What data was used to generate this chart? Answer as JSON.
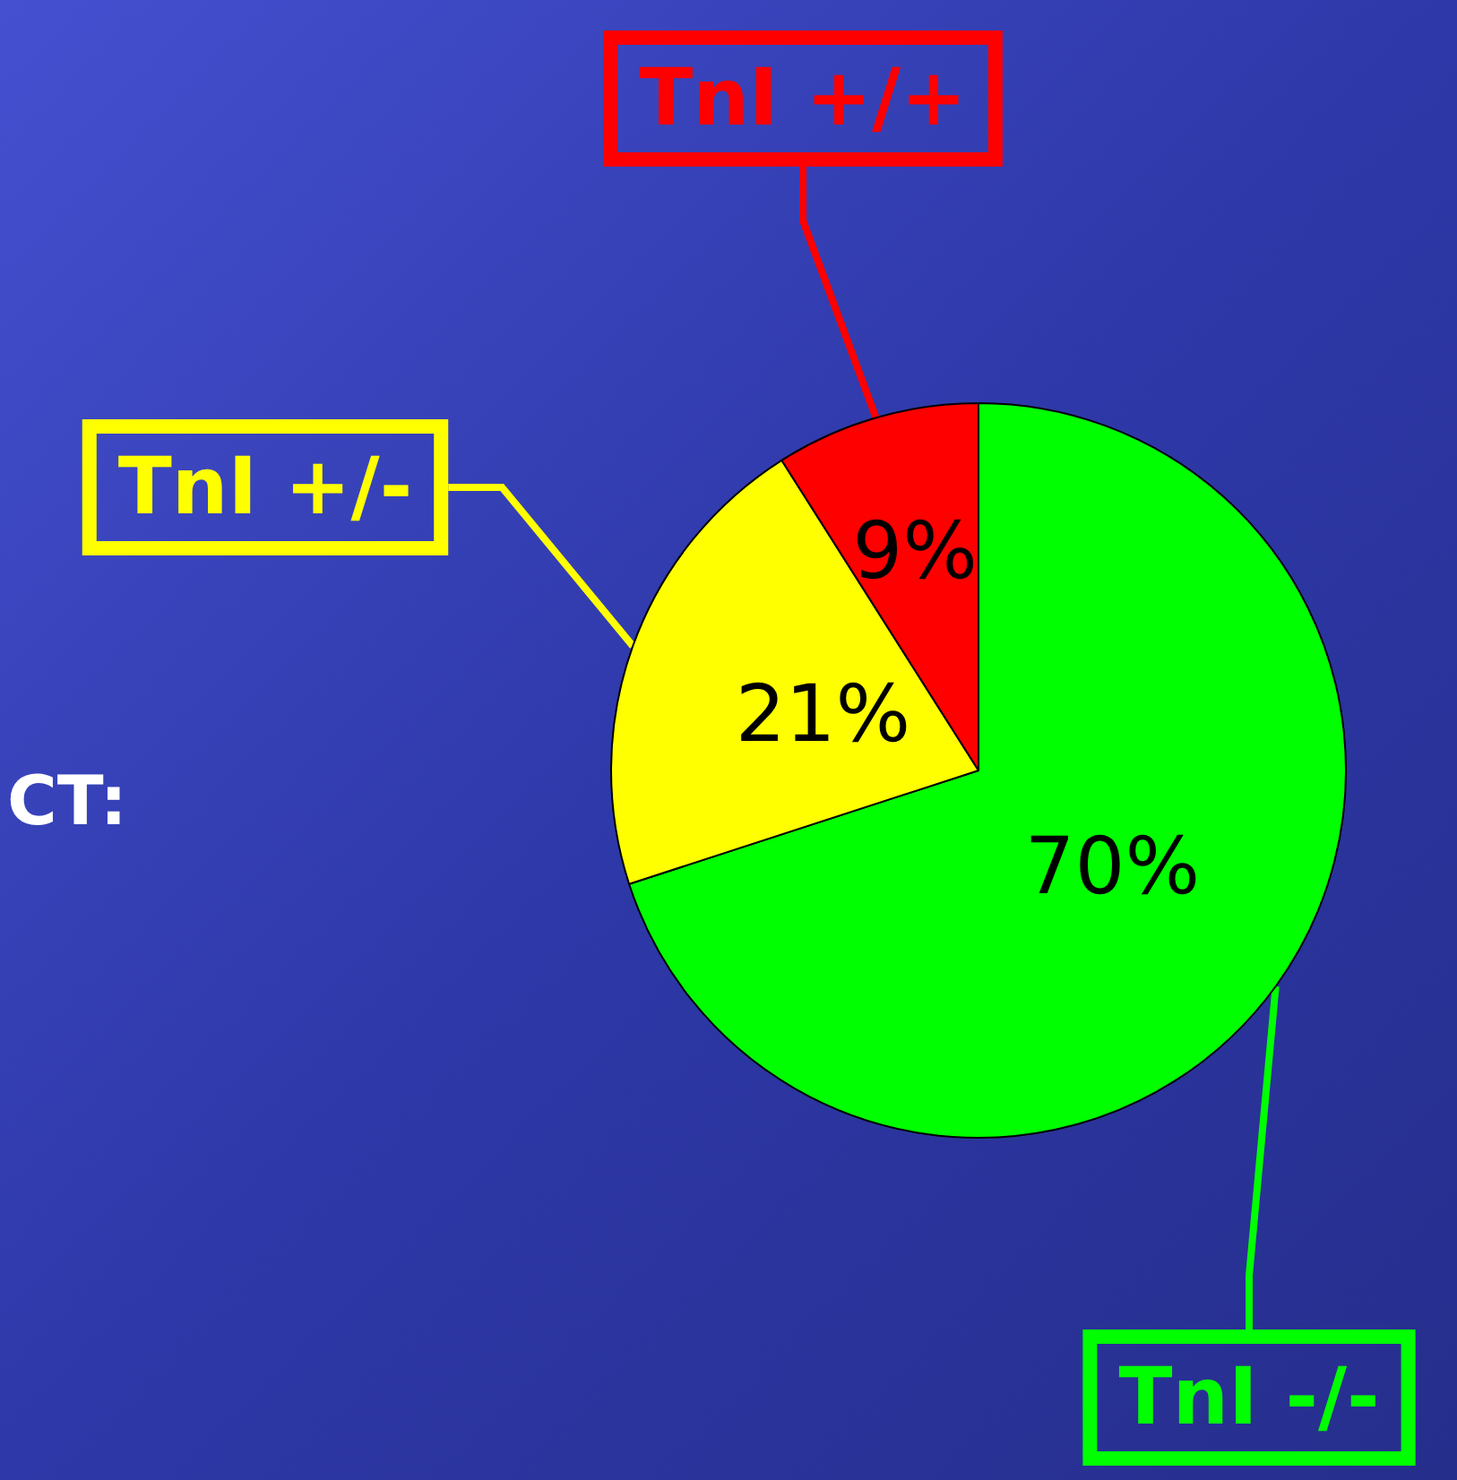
{
  "chart_data": {
    "type": "pie",
    "categories": [
      "TnI -/-",
      "TnI +/-",
      "TnI +/+"
    ],
    "values": [
      70,
      21,
      9
    ],
    "value_labels": [
      "70%",
      "21%",
      "9%"
    ],
    "colors": [
      "#00ff00",
      "#ffff00",
      "#ff0000"
    ],
    "annotations": [
      "CT:"
    ],
    "legend": false
  }
}
